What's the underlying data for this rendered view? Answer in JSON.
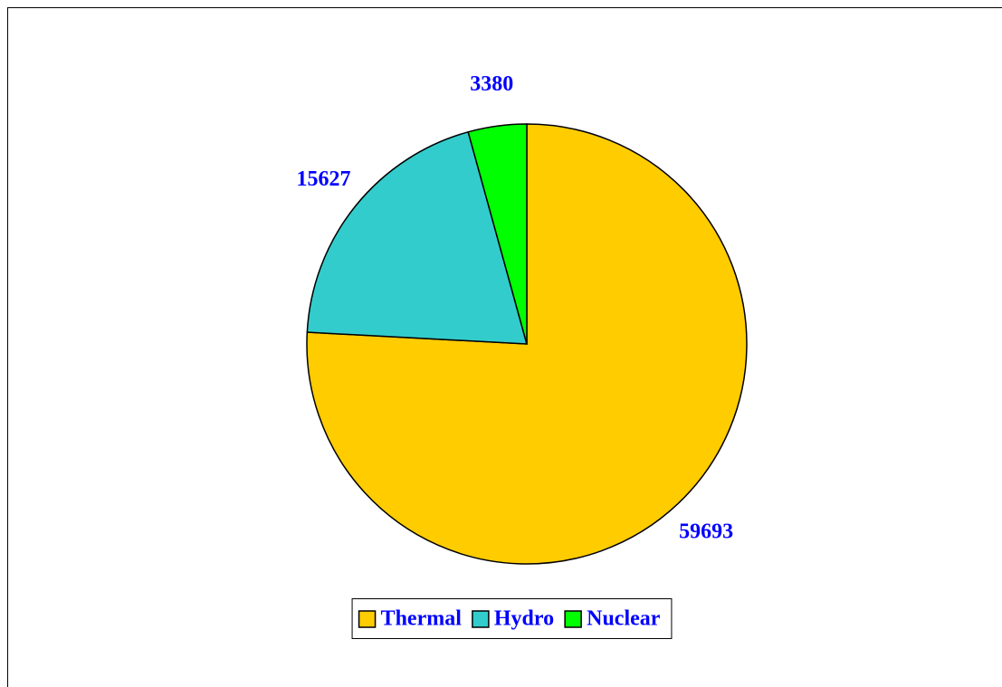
{
  "chart_data": {
    "type": "pie",
    "categories": [
      "Thermal",
      "Hydro",
      "Nuclear"
    ],
    "values": [
      59693,
      15627,
      3380
    ],
    "colors": [
      "#ffcc00",
      "#33cccc",
      "#00ff00"
    ],
    "legend": "bottom"
  }
}
